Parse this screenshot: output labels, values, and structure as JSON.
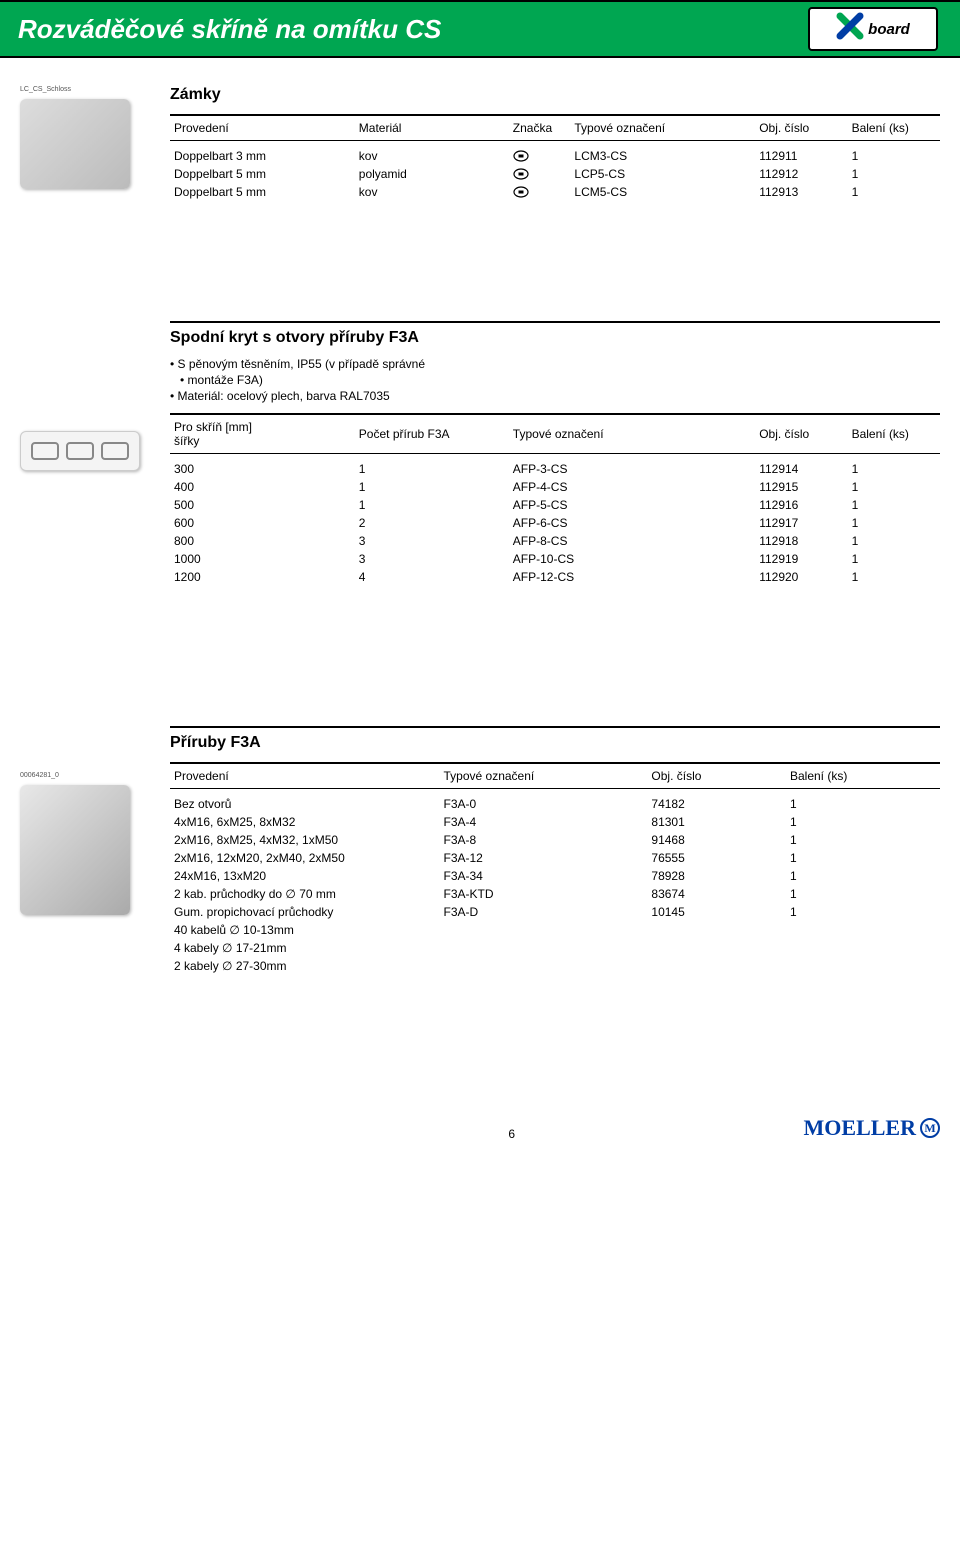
{
  "header": {
    "title": "Rozváděčové skříně na omítku CS",
    "logo_text": "board"
  },
  "section1": {
    "title": "Zámky",
    "thumb_label": "LC_CS_Schloss",
    "columns": [
      "Provedení",
      "Materiál",
      "Značka",
      "Typové označení",
      "Obj. číslo",
      "Balení (ks)"
    ],
    "rows": [
      {
        "provedeni": "Doppelbart 3 mm",
        "material": "kov",
        "typ": "LCM3-CS",
        "obj": "112911",
        "bal": "1"
      },
      {
        "provedeni": "Doppelbart 5 mm",
        "material": "polyamid",
        "typ": "LCP5-CS",
        "obj": "112912",
        "bal": "1"
      },
      {
        "provedeni": "Doppelbart 5 mm",
        "material": "kov",
        "typ": "LCM5-CS",
        "obj": "112913",
        "bal": "1"
      }
    ]
  },
  "section2": {
    "title": "Spodní kryt s otvory příruby F3A",
    "bullet1a": "S pěnovým těsněním, IP55 (v případě správné",
    "bullet1b": "montáže F3A)",
    "bullet2": "Materiál: ocelový plech, barva RAL7035",
    "columns": {
      "c1a": "Pro skříň [mm]",
      "c1b": "šířky",
      "c2": "Počet přírub F3A",
      "c3": "Typové označení",
      "c4": "Obj. číslo",
      "c5": "Balení (ks)"
    },
    "rows": [
      {
        "s": "300",
        "p": "1",
        "t": "AFP-3-CS",
        "o": "112914",
        "b": "1"
      },
      {
        "s": "400",
        "p": "1",
        "t": "AFP-4-CS",
        "o": "112915",
        "b": "1"
      },
      {
        "s": "500",
        "p": "1",
        "t": "AFP-5-CS",
        "o": "112916",
        "b": "1"
      },
      {
        "s": "600",
        "p": "2",
        "t": "AFP-6-CS",
        "o": "112917",
        "b": "1"
      },
      {
        "s": "800",
        "p": "3",
        "t": "AFP-8-CS",
        "o": "112918",
        "b": "1"
      },
      {
        "s": "1000",
        "p": "3",
        "t": "AFP-10-CS",
        "o": "112919",
        "b": "1"
      },
      {
        "s": "1200",
        "p": "4",
        "t": "AFP-12-CS",
        "o": "112920",
        "b": "1"
      }
    ]
  },
  "section3": {
    "title": "Příruby F3A",
    "thumb_label": "00064281_0",
    "columns": [
      "Provedení",
      "Typové označení",
      "Obj. číslo",
      "Balení (ks)"
    ],
    "rows": [
      {
        "p": "Bez otvorů",
        "t": "F3A-0",
        "o": "74182",
        "b": "1"
      },
      {
        "p": "4xM16, 6xM25, 8xM32",
        "t": "F3A-4",
        "o": "81301",
        "b": "1"
      },
      {
        "p": "2xM16, 8xM25, 4xM32, 1xM50",
        "t": "F3A-8",
        "o": "91468",
        "b": "1"
      },
      {
        "p": "2xM16, 12xM20, 2xM40, 2xM50",
        "t": "F3A-12",
        "o": "76555",
        "b": "1"
      },
      {
        "p": "24xM16, 13xM20",
        "t": "F3A-34",
        "o": "78928",
        "b": "1"
      },
      {
        "p": "2 kab. průchodky do ∅ 70 mm",
        "t": "F3A-KTD",
        "o": "83674",
        "b": "1"
      },
      {
        "p": "Gum. propichovací průchodky",
        "t": "F3A-D",
        "o": "10145",
        "b": "1"
      }
    ],
    "tail": [
      "40 kabelů ∅ 10-13mm",
      "4 kabely ∅ 17-21mm",
      "2 kabely ∅ 27-30mm"
    ]
  },
  "footer": {
    "page": "6",
    "brand": "MOELLER"
  }
}
